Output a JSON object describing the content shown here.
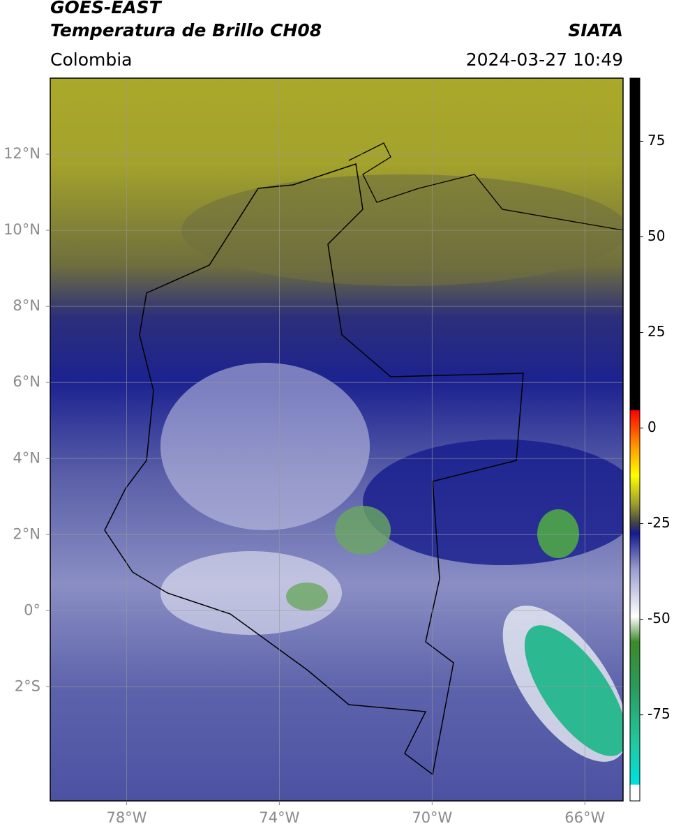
{
  "header": {
    "title": "GOES-EAST",
    "subtitle": "Temperatura de Brillo CH08",
    "source": "SIATA",
    "region": "Colombia",
    "datetime": "2024-03-27 10:49"
  },
  "map": {
    "lonlim": [
      -80,
      -65
    ],
    "latlim": [
      -5,
      14
    ],
    "lonticks": [
      {
        "value": -78,
        "label": "78°W"
      },
      {
        "value": -74,
        "label": "74°W"
      },
      {
        "value": -70,
        "label": "70°W"
      },
      {
        "value": -66,
        "label": "66°W"
      }
    ],
    "latticks": [
      {
        "value": 12,
        "label": "12°N"
      },
      {
        "value": 10,
        "label": "10°N"
      },
      {
        "value": 8,
        "label": "8°N"
      },
      {
        "value": 6,
        "label": "6°N"
      },
      {
        "value": 4,
        "label": "4°N"
      },
      {
        "value": 2,
        "label": "2°N"
      },
      {
        "value": 0,
        "label": "0°"
      },
      {
        "value": -2,
        "label": "2°S"
      }
    ]
  },
  "colorbar": {
    "lim": [
      -97.5,
      91.5
    ],
    "ticks": [
      75,
      50,
      25,
      0,
      -25,
      -50,
      -75
    ]
  }
}
